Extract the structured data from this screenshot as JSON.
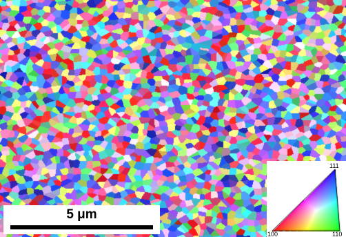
{
  "scale_bar": {
    "label": "5 μm"
  },
  "ipf_legend": {
    "corner_100": "100",
    "corner_111": "111",
    "corner_110": "110",
    "colors": {
      "100": "#ff0000",
      "110": "#00ff00",
      "111": "#0000ff"
    }
  },
  "grain_map": {
    "palette": [
      "#ff3b6b",
      "#ff6fa0",
      "#c26bff",
      "#8b5cff",
      "#5a6bff",
      "#3b8bff",
      "#39c4ff",
      "#5fe8d8",
      "#5cff7a",
      "#9dff5c",
      "#e0ff6a",
      "#ffe07a",
      "#ffb0d0",
      "#d8c8ff",
      "#2b3bd8",
      "#ff2a2a"
    ]
  }
}
